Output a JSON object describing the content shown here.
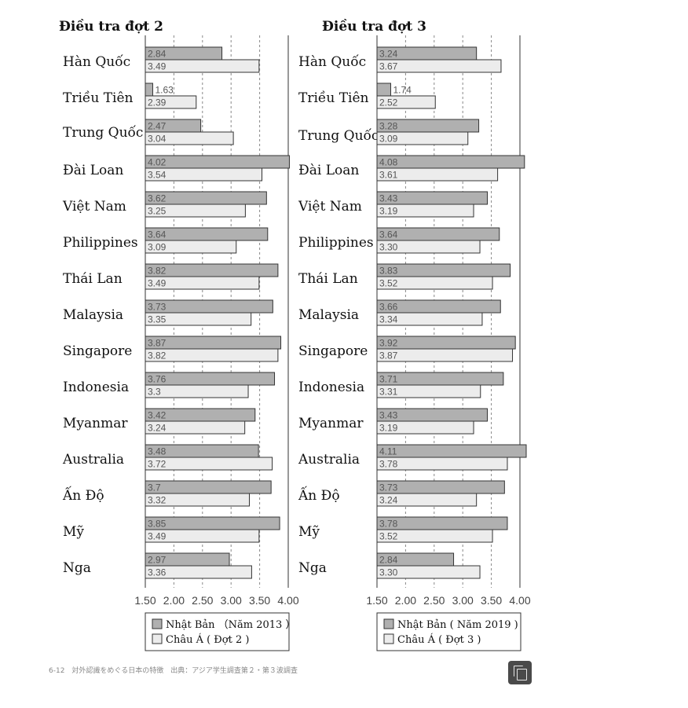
{
  "chart_data": [
    {
      "type": "bar",
      "orientation": "horizontal",
      "title": "Điều tra đợt 2",
      "categories": [
        "Hàn Quốc",
        "Triều Tiên",
        "Trung Quốc",
        "Đài Loan",
        "Việt Nam",
        "Philippines",
        "Thái Lan",
        "Malaysia",
        "Singapore",
        "Indonesia",
        "Myanmar",
        "Australia",
        "Ấn Độ",
        "Mỹ",
        "Nga"
      ],
      "series": [
        {
          "name": "Nhật Bản （Năm 2013 ）",
          "values": [
            2.84,
            1.63,
            2.47,
            4.02,
            3.62,
            3.64,
            3.82,
            3.73,
            3.87,
            3.76,
            3.42,
            3.48,
            3.7,
            3.85,
            2.97
          ],
          "labels": [
            "2.84",
            "1.63",
            "2.47",
            "4.02",
            "3.62",
            "3.64",
            "3.82",
            "3.73",
            "3.87",
            "3.76",
            "3.42",
            "3.48",
            "3.7",
            "3.85",
            "2.97"
          ],
          "color": "#b0b0b0"
        },
        {
          "name": "Châu Á ( Đợt 2 )",
          "values": [
            3.49,
            2.39,
            3.04,
            3.54,
            3.25,
            3.09,
            3.49,
            3.35,
            3.82,
            3.3,
            3.24,
            3.72,
            3.32,
            3.49,
            3.36
          ],
          "labels": [
            "3.49",
            "2.39",
            "3.04",
            "3.54",
            "3.25",
            "3.09",
            "3.49",
            "3.35",
            "3.82",
            "3.3",
            "3.24",
            "3.72",
            "3.32",
            "3.49",
            "3.36"
          ],
          "color": "#ececec"
        }
      ],
      "xlim": [
        1.5,
        4.0
      ],
      "xticks": [
        "1.50",
        "2.00",
        "2.50",
        "3.00",
        "3.50",
        "4.00"
      ],
      "grid": "dashed-vertical",
      "legend": "bottom"
    },
    {
      "type": "bar",
      "orientation": "horizontal",
      "title": "Điều tra đợt 3",
      "categories": [
        "Hàn Quốc",
        "Triều Tiên",
        "Trung Quốc",
        "Đài Loan",
        "Việt Nam",
        "Philippines",
        "Thái Lan",
        "Malaysia",
        "Singapore",
        "Indonesia",
        "Myanmar",
        "Australia",
        "Ấn Độ",
        "Mỹ",
        "Nga"
      ],
      "series": [
        {
          "name": "Nhật Bản ( Năm 2019 )",
          "values": [
            3.24,
            1.74,
            3.28,
            4.08,
            3.43,
            3.64,
            3.83,
            3.66,
            3.92,
            3.71,
            3.43,
            4.11,
            3.73,
            3.78,
            2.84
          ],
          "labels": [
            "3.24",
            "1.74",
            "3.28",
            "4.08",
            "3.43",
            "3.64",
            "3.83",
            "3.66",
            "3.92",
            "3.71",
            "3.43",
            "4.11",
            "3.73",
            "3.78",
            "2.84"
          ],
          "color": "#b0b0b0"
        },
        {
          "name": "Châu Á ( Đợt 3 )",
          "values": [
            3.67,
            2.52,
            3.09,
            3.61,
            3.19,
            3.3,
            3.52,
            3.34,
            3.87,
            3.31,
            3.19,
            3.78,
            3.24,
            3.52,
            3.3
          ],
          "labels": [
            "3.67",
            "2.52",
            "3.09",
            "3.61",
            "3.19",
            "3.30",
            "3.52",
            "3.34",
            "3.87",
            "3.31",
            "3.19",
            "3.78",
            "3.24",
            "3.52",
            "3.30"
          ],
          "color": "#ececec"
        }
      ],
      "xlim": [
        1.5,
        4.0
      ],
      "xticks": [
        "1.50",
        "2.00",
        "2.50",
        "3.00",
        "3.50",
        "4.00"
      ],
      "grid": "dashed-vertical",
      "legend": "bottom"
    }
  ],
  "caption": "6-12　対外認識をめぐる日本の特徴　出典：アジア学生調査第２・第３波調査",
  "copy_icon": "copy-icon"
}
